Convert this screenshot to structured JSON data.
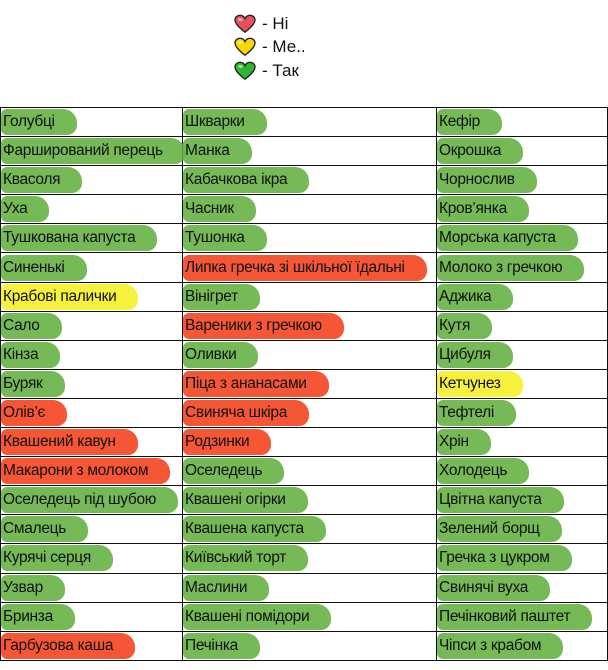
{
  "legend": [
    {
      "label": "- Ні",
      "color": "#e8505b",
      "icon": "heart-red-icon"
    },
    {
      "label": "- Ме..",
      "color": "#f5d800",
      "icon": "heart-yellow-icon"
    },
    {
      "label": "- Так",
      "color": "#2fb52f",
      "icon": "heart-green-icon"
    }
  ],
  "colors": {
    "g": "#62b040",
    "r": "#f44824",
    "y": "#f6f032"
  },
  "rows": [
    [
      [
        "Голубці",
        "g"
      ],
      [
        "Шкварки",
        "g"
      ],
      [
        "Кефір",
        "g"
      ]
    ],
    [
      [
        "Фарширований перець",
        "g"
      ],
      [
        "Манка",
        "g"
      ],
      [
        "Окрошка",
        "g"
      ]
    ],
    [
      [
        "Квасоля",
        "g"
      ],
      [
        "Кабачкова ікра",
        "g"
      ],
      [
        "Чорнослив",
        "g"
      ]
    ],
    [
      [
        "Уха",
        "g"
      ],
      [
        "Часник",
        "g"
      ],
      [
        "Кров’янка",
        "g"
      ]
    ],
    [
      [
        "Тушкована капуста",
        "g"
      ],
      [
        "Тушонка",
        "g"
      ],
      [
        "Морська капуста",
        "g"
      ]
    ],
    [
      [
        "Синенькі",
        "g"
      ],
      [
        "Липка гречка зі шкільної їдальні",
        "r"
      ],
      [
        "Молоко з гречкою",
        "g"
      ]
    ],
    [
      [
        "Крабові палички",
        "y"
      ],
      [
        "Вінігрет",
        "g"
      ],
      [
        "Аджика",
        "g"
      ]
    ],
    [
      [
        "Сало",
        "g"
      ],
      [
        "Вареники з гречкою",
        "r"
      ],
      [
        "Кутя",
        "g"
      ]
    ],
    [
      [
        "Кінза",
        "g"
      ],
      [
        "Оливки",
        "g"
      ],
      [
        "Цибуля",
        "g"
      ]
    ],
    [
      [
        "Буряк",
        "g"
      ],
      [
        "Піца з ананасами",
        "r"
      ],
      [
        "Кетчунез",
        "y"
      ]
    ],
    [
      [
        "Олів’є",
        "r"
      ],
      [
        "Свиняча шкіра",
        "r"
      ],
      [
        "Тефтелі",
        "g"
      ]
    ],
    [
      [
        "Квашений кавун",
        "r"
      ],
      [
        "Родзинки",
        "r"
      ],
      [
        "Хрін",
        "g"
      ]
    ],
    [
      [
        "Макарони з молоком",
        "r"
      ],
      [
        "Оселедець",
        "g"
      ],
      [
        "Холодець",
        "g"
      ]
    ],
    [
      [
        "Оселедець під шубою",
        "g"
      ],
      [
        "Квашені огірки",
        "g"
      ],
      [
        "Цвітна капуста",
        "g"
      ]
    ],
    [
      [
        "Смалець",
        "g"
      ],
      [
        "Квашена капуста",
        "g"
      ],
      [
        "Зелений борщ",
        "g"
      ]
    ],
    [
      [
        "Курячі серця",
        "g"
      ],
      [
        "Київський торт",
        "g"
      ],
      [
        "Гречка з цукром",
        "g"
      ]
    ],
    [
      [
        "Узвар",
        "g"
      ],
      [
        "Маслини",
        "g"
      ],
      [
        "Свинячі вуха",
        "g"
      ]
    ],
    [
      [
        "Бринза",
        "g"
      ],
      [
        "Квашені помідори",
        "g"
      ],
      [
        "Печінковий паштет",
        "g"
      ]
    ],
    [
      [
        "Гарбузова каша",
        "r"
      ],
      [
        "Печінка",
        "g"
      ],
      [
        "Чіпси з крабом",
        "g"
      ]
    ]
  ]
}
